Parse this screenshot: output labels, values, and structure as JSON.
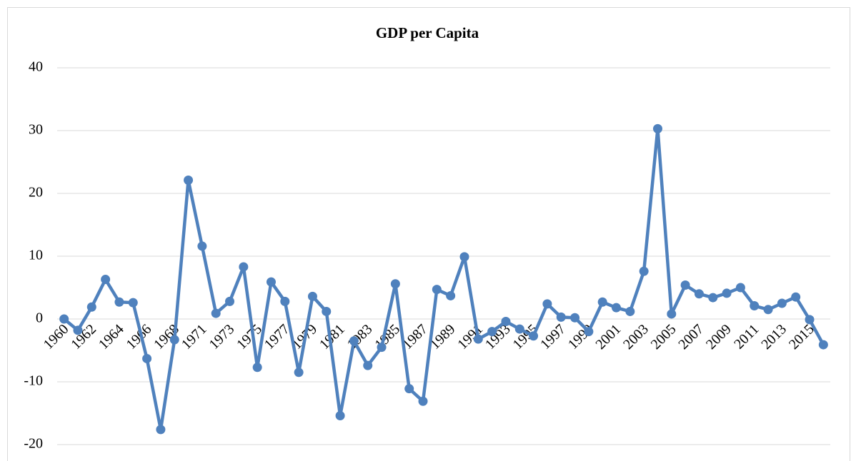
{
  "chart_data": {
    "type": "line",
    "title": "GDP per Capita",
    "categories": [
      "1960",
      null,
      "1962",
      null,
      "1964",
      null,
      "1966",
      null,
      "1968",
      null,
      "1971",
      null,
      "1973",
      null,
      "1975",
      null,
      "1977",
      null,
      "1979",
      null,
      "1981",
      null,
      "1983",
      null,
      "1985",
      null,
      "1987",
      null,
      "1989",
      null,
      "1991",
      null,
      "1993",
      null,
      "1995",
      null,
      "1997",
      null,
      "1999",
      null,
      "2001",
      null,
      "2003",
      null,
      "2005",
      null,
      "2007",
      null,
      "2009",
      null,
      "2011",
      null,
      "2013",
      null,
      "2015",
      null
    ],
    "values": [
      0,
      -1.8,
      1.9,
      6.3,
      2.7,
      2.6,
      -6.3,
      -17.6,
      -3.3,
      22.1,
      11.6,
      0.9,
      2.8,
      8.3,
      -7.7,
      5.9,
      2.8,
      -8.5,
      3.6,
      1.2,
      -15.4,
      -3.5,
      -7.4,
      -4.5,
      5.6,
      -11.1,
      -13.1,
      4.7,
      3.7,
      9.9,
      -3.2,
      -2.0,
      -0.4,
      -1.6,
      -2.7,
      2.4,
      0.3,
      0.2,
      -2.0,
      2.7,
      1.8,
      1.2,
      7.6,
      30.3,
      0.8,
      5.4,
      4.0,
      3.4,
      4.1,
      5.0,
      2.1,
      1.5,
      2.5,
      3.5,
      -0.1,
      -4.1
    ],
    "color": "#4f81bd",
    "ylim": [
      -20,
      40
    ],
    "yticks": [
      -20,
      -10,
      0,
      10,
      20,
      30,
      40
    ],
    "grid": true
  }
}
